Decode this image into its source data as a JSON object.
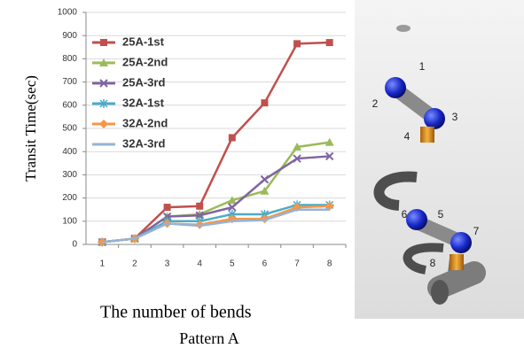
{
  "chart_data": {
    "type": "line",
    "y_label": "Transit Time(sec)",
    "x_label": "The number of bends",
    "caption": "Pattern A",
    "categories": [
      "1",
      "2",
      "3",
      "4",
      "5",
      "6",
      "7",
      "8"
    ],
    "series": [
      {
        "name": "25A-1st",
        "color": "#c0504d",
        "marker": "square",
        "values": [
          10,
          25,
          160,
          165,
          460,
          610,
          865,
          870
        ]
      },
      {
        "name": "25A-2nd",
        "color": "#9bbb59",
        "marker": "triangle",
        "values": [
          10,
          25,
          120,
          130,
          190,
          230,
          420,
          440
        ]
      },
      {
        "name": "25A-3rd",
        "color": "#8064a2",
        "marker": "cross",
        "values": [
          10,
          25,
          120,
          125,
          160,
          280,
          370,
          380
        ]
      },
      {
        "name": "32A-1st",
        "color": "#4bacc6",
        "marker": "star",
        "values": [
          10,
          25,
          100,
          100,
          130,
          130,
          170,
          170
        ]
      },
      {
        "name": "32A-2nd",
        "color": "#f79646",
        "marker": "diamond",
        "values": [
          10,
          25,
          90,
          85,
          110,
          110,
          160,
          165
        ]
      },
      {
        "name": "32A-3rd",
        "color": "#95b3d7",
        "marker": "none",
        "values": [
          10,
          25,
          90,
          80,
          100,
          105,
          150,
          150
        ]
      }
    ],
    "ylim": [
      0,
      1000
    ],
    "yticks": [
      0,
      100,
      200,
      300,
      400,
      500,
      600,
      700,
      800,
      900,
      1000
    ],
    "grid": true,
    "legend": "upper-left"
  },
  "illustration": {
    "labels": [
      "1",
      "2",
      "3",
      "4",
      "5",
      "6",
      "7",
      "8"
    ]
  }
}
